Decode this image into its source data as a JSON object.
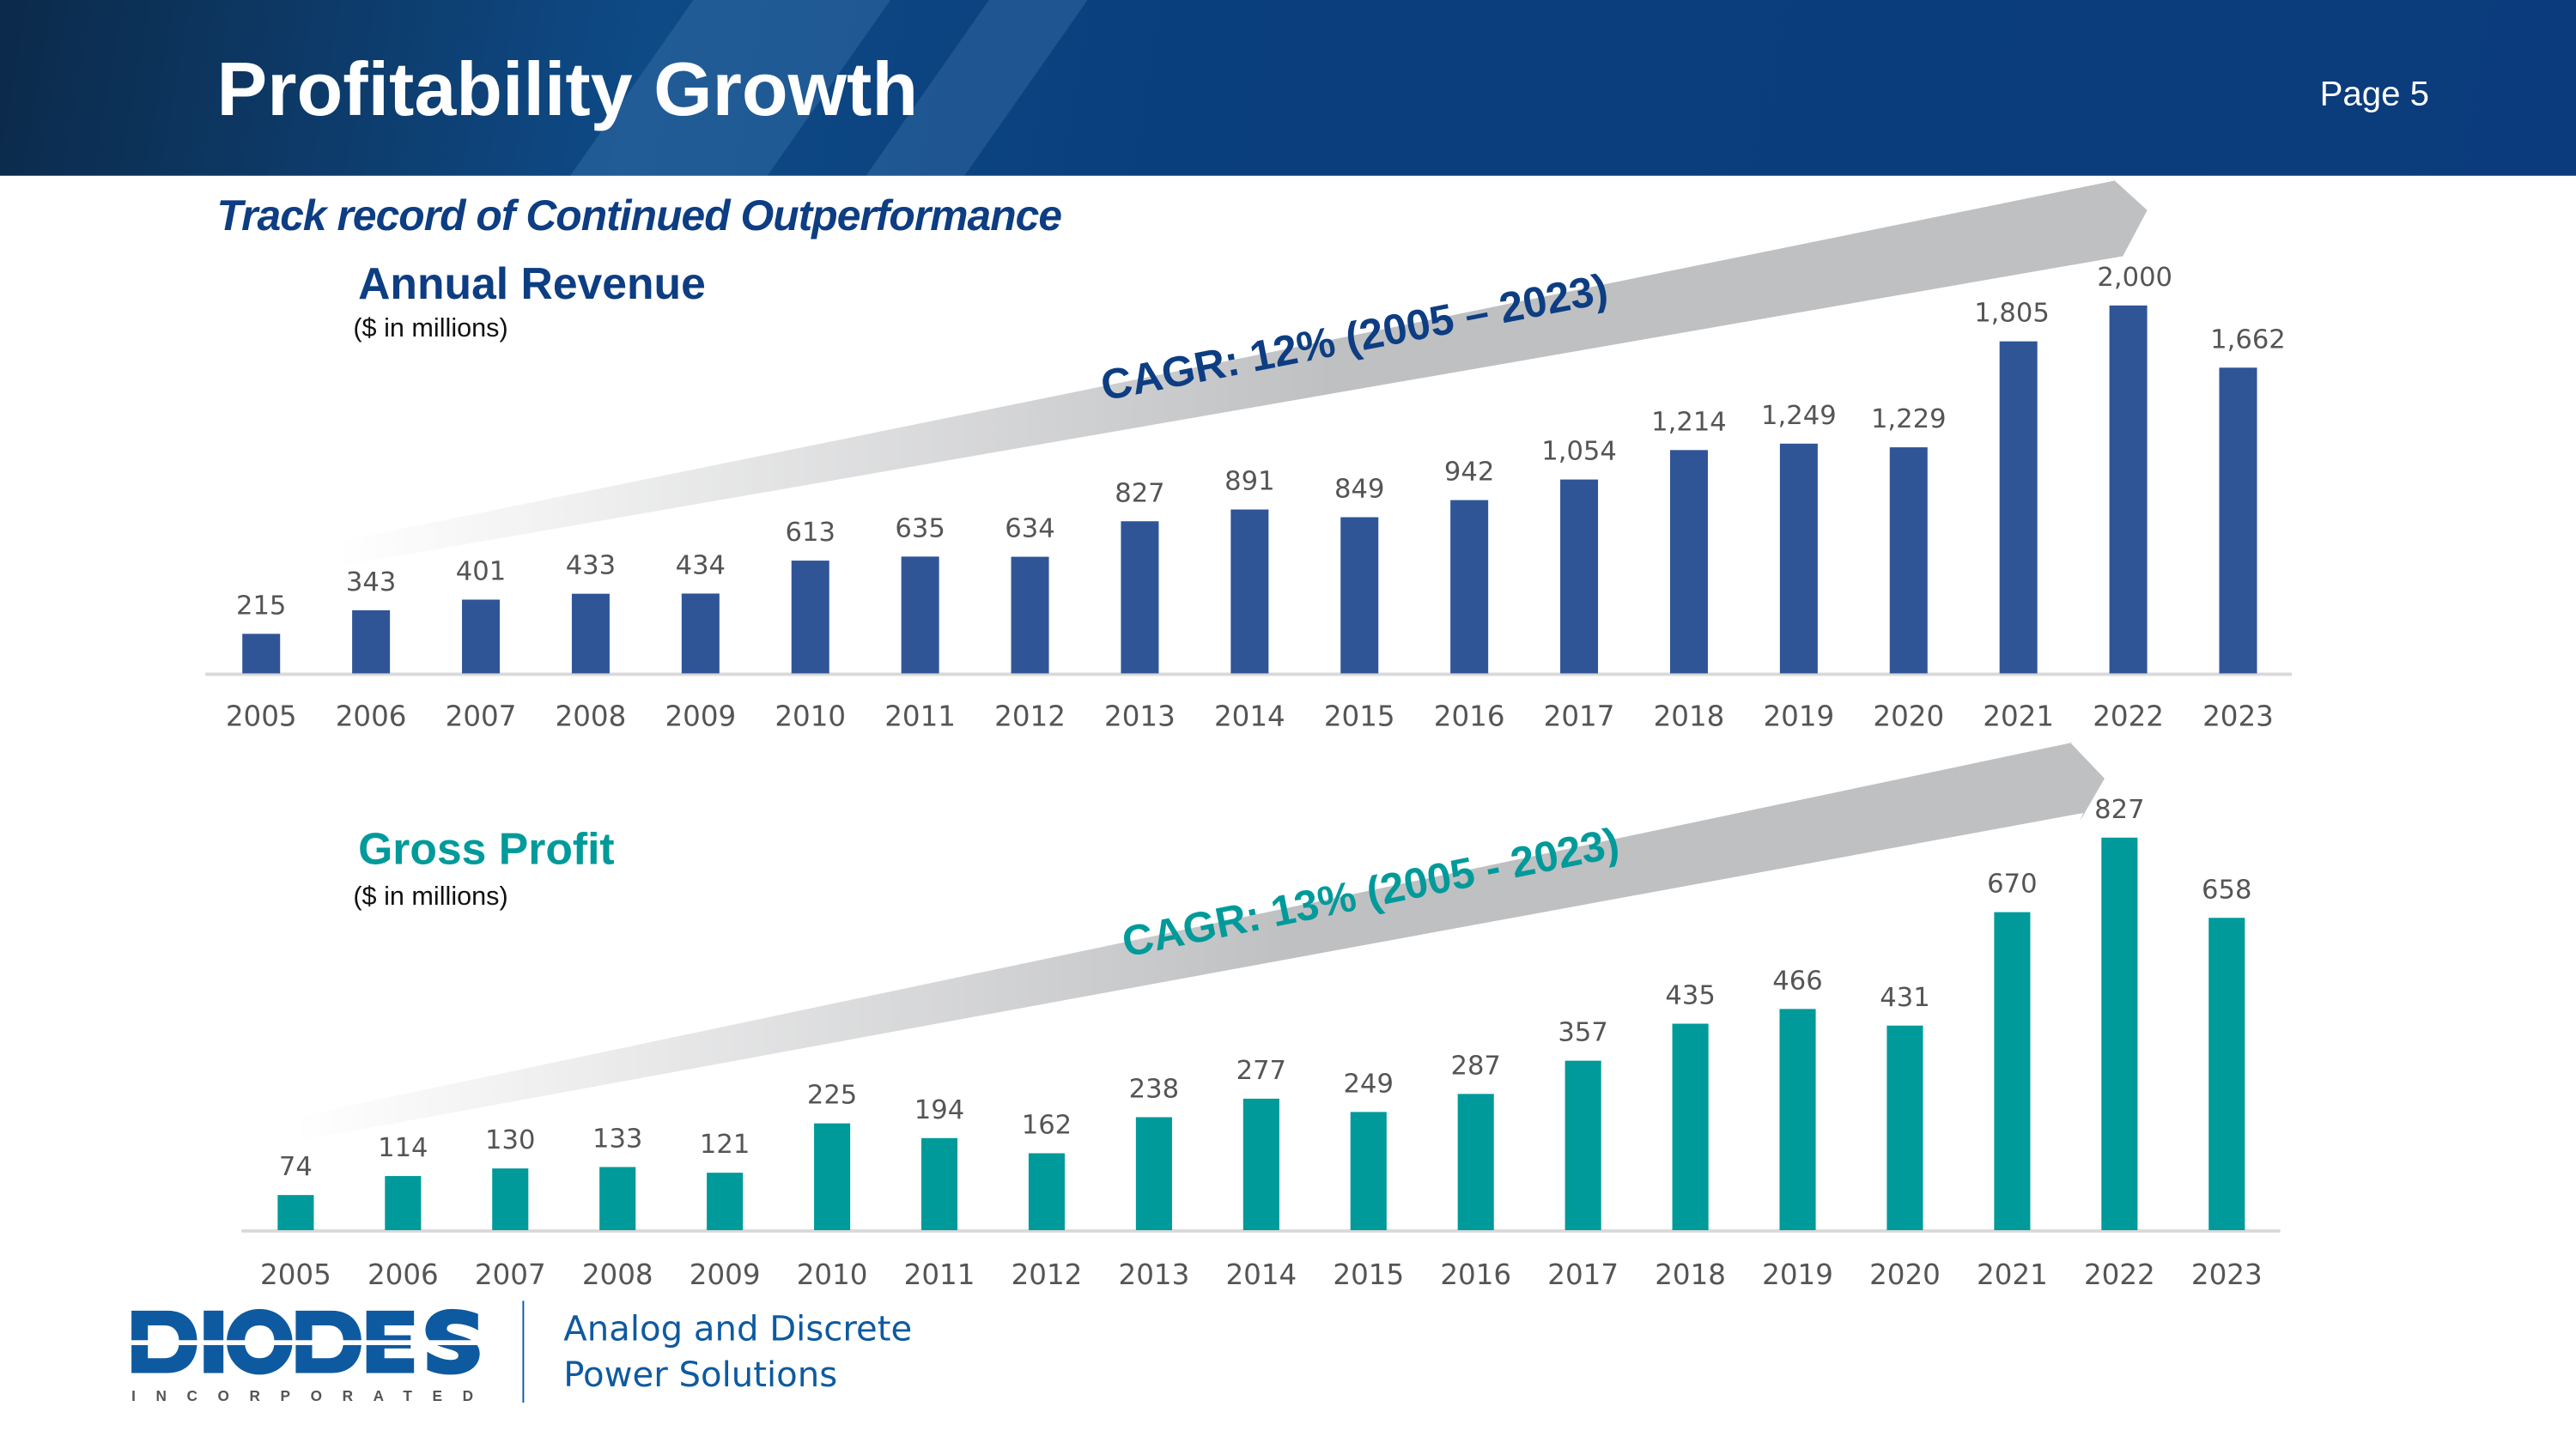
{
  "header": {
    "title": "Profitability Growth",
    "page": "Page 5"
  },
  "subtitle": "Track record of Continued Outperformance",
  "footer": {
    "logo_text": "DIODES",
    "logo_sub": "INCORPORATED",
    "tagline_line1": "Analog and Discrete",
    "tagline_line2": "Power Solutions"
  },
  "colors": {
    "revenue": "#2f5597",
    "gross_profit": "#009a9a",
    "header": "#0b3b7c",
    "arrow": "#bfc0c2"
  },
  "chart_data": [
    {
      "type": "bar",
      "title": "Annual Revenue",
      "unit": "($ in millions)",
      "annotation": "CAGR: 12% (2005 – 2023)",
      "categories": [
        "2005",
        "2006",
        "2007",
        "2008",
        "2009",
        "2010",
        "2011",
        "2012",
        "2013",
        "2014",
        "2015",
        "2016",
        "2017",
        "2018",
        "2019",
        "2020",
        "2021",
        "2022",
        "2023"
      ],
      "values": [
        215,
        343,
        401,
        433,
        434,
        613,
        635,
        634,
        827,
        891,
        849,
        942,
        1054,
        1214,
        1249,
        1229,
        1805,
        2000,
        1662
      ],
      "labels": [
        "215",
        "343",
        "401",
        "433",
        "434",
        "613",
        "635",
        "634",
        "827",
        "891",
        "849",
        "942",
        "1,054",
        "1,214",
        "1,249",
        "1,229",
        "1,805",
        "2,000",
        "1,662"
      ],
      "ylim": [
        0,
        2000
      ],
      "grid": false
    },
    {
      "type": "bar",
      "title": "Gross Profit",
      "unit": "($ in millions)",
      "annotation": "CAGR: 13% (2005 - 2023)",
      "categories": [
        "2005",
        "2006",
        "2007",
        "2008",
        "2009",
        "2010",
        "2011",
        "2012",
        "2013",
        "2014",
        "2015",
        "2016",
        "2017",
        "2018",
        "2019",
        "2020",
        "2021",
        "2022",
        "2023"
      ],
      "values": [
        74,
        114,
        130,
        133,
        121,
        225,
        194,
        162,
        238,
        277,
        249,
        287,
        357,
        435,
        466,
        431,
        670,
        827,
        658
      ],
      "labels": [
        "74",
        "114",
        "130",
        "133",
        "121",
        "225",
        "194",
        "162",
        "238",
        "277",
        "249",
        "287",
        "357",
        "435",
        "466",
        "431",
        "670",
        "827",
        "658"
      ],
      "ylim": [
        0,
        827
      ],
      "grid": false
    }
  ]
}
